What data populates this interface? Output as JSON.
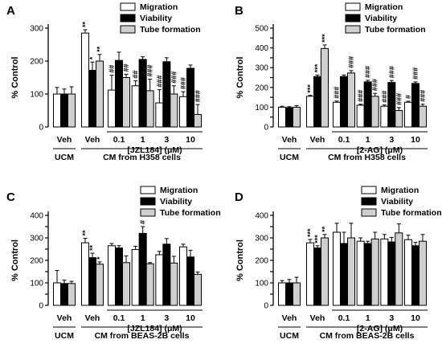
{
  "chart_data": [
    {
      "panel": "A",
      "type": "bar",
      "ylabel": "% Control",
      "ylim": [
        0,
        300
      ],
      "yticks": [
        0,
        100,
        200,
        300
      ],
      "series": [
        {
          "name": "Migration",
          "color": "#ffffff",
          "values": [
            100,
            285,
            112,
            125,
            73,
            92
          ],
          "errors": [
            20,
            10,
            45,
            15,
            40,
            15
          ]
        },
        {
          "name": "Viability",
          "color": "#000000",
          "values": [
            100,
            172,
            202,
            205,
            198,
            178
          ],
          "errors": [
            15,
            25,
            25,
            8,
            12,
            10
          ]
        },
        {
          "name": "Tube formation",
          "color": "#cfcfcf",
          "values": [
            100,
            200,
            150,
            110,
            100,
            38
          ],
          "errors": [
            22,
            20,
            10,
            35,
            25,
            30
          ]
        }
      ],
      "groups": [
        "Veh",
        "Veh",
        "0.1",
        "1",
        "3",
        "10"
      ],
      "group_labels": [
        "UCM",
        "[JZL184] (μM)",
        "CM from H358 cells"
      ],
      "annotations": [
        {
          "g": 1,
          "s": 0,
          "text": "**"
        },
        {
          "g": 1,
          "s": 1,
          "text": "*"
        },
        {
          "g": 1,
          "s": 2,
          "text": "**"
        },
        {
          "g": 2,
          "s": 0,
          "text": "##"
        },
        {
          "g": 2,
          "s": 2,
          "text": "##"
        },
        {
          "g": 3,
          "s": 0,
          "text": "##"
        },
        {
          "g": 3,
          "s": 2,
          "text": "###"
        },
        {
          "g": 4,
          "s": 0,
          "text": "###"
        },
        {
          "g": 4,
          "s": 2,
          "text": "###"
        },
        {
          "g": 5,
          "s": 0,
          "text": "###"
        },
        {
          "g": 5,
          "s": 2,
          "text": "###"
        }
      ]
    },
    {
      "panel": "B",
      "type": "bar",
      "ylabel": "% Control",
      "ylim": [
        0,
        500
      ],
      "yticks": [
        0,
        50,
        100,
        150,
        200,
        250,
        300,
        350,
        400,
        450,
        500
      ],
      "series": [
        {
          "name": "Migration",
          "color": "#ffffff",
          "values": [
            100,
            155,
            125,
            110,
            105,
            125
          ],
          "errors": [
            5,
            5,
            6,
            5,
            6,
            5
          ]
        },
        {
          "name": "Viability",
          "color": "#000000",
          "values": [
            98,
            255,
            255,
            228,
            225,
            220
          ],
          "errors": [
            5,
            8,
            8,
            8,
            10,
            8
          ]
        },
        {
          "name": "Tube formation",
          "color": "#cfcfcf",
          "values": [
            100,
            397,
            273,
            155,
            83,
            105
          ],
          "errors": [
            8,
            18,
            12,
            15,
            15,
            10
          ]
        }
      ],
      "groups": [
        "Veh",
        "Veh",
        "0.1",
        "1",
        "3",
        "10"
      ],
      "group_labels": [
        "UCM",
        "[2-AG] (μM)",
        "CM from H358 cells"
      ],
      "annotations": [
        {
          "g": 1,
          "s": 0,
          "text": "***"
        },
        {
          "g": 1,
          "s": 1,
          "text": "***"
        },
        {
          "g": 1,
          "s": 2,
          "text": "***"
        },
        {
          "g": 2,
          "s": 0,
          "text": "###"
        },
        {
          "g": 2,
          "s": 2,
          "text": "###"
        },
        {
          "g": 3,
          "s": 0,
          "text": "###"
        },
        {
          "g": 3,
          "s": 1,
          "text": "###"
        },
        {
          "g": 3,
          "s": 2,
          "text": "###"
        },
        {
          "g": 4,
          "s": 0,
          "text": "###"
        },
        {
          "g": 4,
          "s": 1,
          "text": "###"
        },
        {
          "g": 4,
          "s": 2,
          "text": "###"
        },
        {
          "g": 5,
          "s": 0,
          "text": "#"
        },
        {
          "g": 5,
          "s": 1,
          "text": "###"
        },
        {
          "g": 5,
          "s": 2,
          "text": "###"
        }
      ]
    },
    {
      "panel": "C",
      "type": "bar",
      "ylabel": "% Control",
      "ylim": [
        0,
        400
      ],
      "yticks": [
        0,
        50,
        100,
        150,
        200,
        250,
        300,
        350,
        400
      ],
      "series": [
        {
          "name": "Migration",
          "color": "#ffffff",
          "values": [
            100,
            278,
            265,
            248,
            225,
            260
          ],
          "errors": [
            55,
            20,
            10,
            15,
            15,
            12
          ]
        },
        {
          "name": "Viability",
          "color": "#000000",
          "values": [
            97,
            212,
            255,
            320,
            272,
            215
          ],
          "errors": [
            15,
            20,
            10,
            30,
            25,
            30
          ]
        },
        {
          "name": "Tube formation",
          "color": "#cfcfcf",
          "values": [
            97,
            183,
            190,
            185,
            188,
            138
          ],
          "errors": [
            10,
            10,
            30,
            5,
            30,
            10
          ]
        }
      ],
      "groups": [
        "Veh",
        "Veh",
        "0.1",
        "1",
        "3",
        "10"
      ],
      "group_labels": [
        "UCM",
        "[JZL184] (μM)",
        "CM from BEAS-2B cells"
      ],
      "annotations": [
        {
          "g": 1,
          "s": 0,
          "text": "**"
        },
        {
          "g": 1,
          "s": 1,
          "text": "**"
        },
        {
          "g": 1,
          "s": 2,
          "text": "*"
        },
        {
          "g": 3,
          "s": 1,
          "text": "#"
        }
      ]
    },
    {
      "panel": "D",
      "type": "bar",
      "ylabel": "% Control",
      "ylim": [
        0,
        400
      ],
      "yticks": [
        0,
        50,
        100,
        150,
        200,
        250,
        300,
        350,
        400
      ],
      "series": [
        {
          "name": "Migration",
          "color": "#ffffff",
          "values": [
            100,
            278,
            325,
            285,
            295,
            292
          ],
          "errors": [
            10,
            15,
            40,
            15,
            20,
            20
          ]
        },
        {
          "name": "Viability",
          "color": "#000000",
          "values": [
            100,
            255,
            275,
            275,
            282,
            265
          ],
          "errors": [
            15,
            10,
            50,
            10,
            20,
            15
          ]
        },
        {
          "name": "Tube formation",
          "color": "#cfcfcf",
          "values": [
            100,
            300,
            300,
            295,
            322,
            285
          ],
          "errors": [
            25,
            15,
            65,
            30,
            40,
            30
          ]
        }
      ],
      "groups": [
        "Veh",
        "Veh",
        "0.1",
        "1",
        "3",
        "10"
      ],
      "group_labels": [
        "UCM",
        "[2-AG] (μM)",
        "CM from BEAS-2B cells"
      ],
      "annotations": [
        {
          "g": 1,
          "s": 0,
          "text": "***"
        },
        {
          "g": 1,
          "s": 1,
          "text": "***"
        },
        {
          "g": 1,
          "s": 2,
          "text": "**"
        }
      ]
    }
  ]
}
